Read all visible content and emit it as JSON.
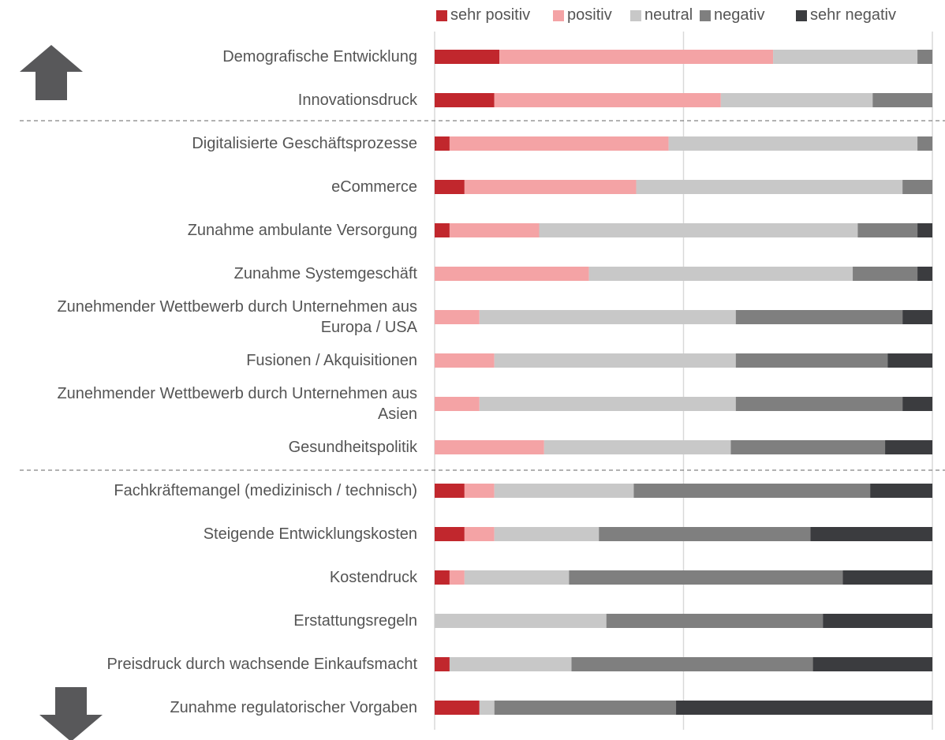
{
  "chart_data": {
    "type": "stacked-bar-horizontal",
    "categories": [
      "Demografische Entwicklung",
      "Innovationsdruck",
      "Digitalisierte Geschäftsprozesse",
      "eCommerce",
      "Zunahme ambulante Versorgung",
      "Zunahme Systemgeschäft",
      "Zunehmender Wettbewerb durch Unternehmen aus\nEuropa / USA",
      "Fusionen / Akquisitionen",
      "Zunehmender Wettbewerb durch Unternehmen aus\nAsien",
      "Gesundheitspolitik",
      "Fachkräftemangel (medizinisch / technisch)",
      "Steigende Entwicklungskosten",
      "Kostendruck",
      "Erstattungsregeln",
      "Preisdruck durch wachsende Einkaufsmacht",
      "Zunahme regulatorischer Vorgaben"
    ],
    "series": [
      {
        "name": "sehr positiv",
        "color": "#c1272d",
        "values": [
          13,
          12,
          3,
          6,
          3,
          0,
          0,
          0,
          0,
          0,
          6,
          6,
          3,
          0,
          3,
          9
        ]
      },
      {
        "name": "positiv",
        "color": "#f4a3a5",
        "values": [
          55,
          45.5,
          44,
          34.5,
          18,
          31,
          9,
          12,
          9,
          22,
          6,
          6,
          3,
          0,
          0,
          0
        ]
      },
      {
        "name": "neutral",
        "color": "#c8c8c8",
        "values": [
          29,
          30.5,
          50,
          53.5,
          64,
          53,
          51.5,
          48.5,
          51.5,
          37.5,
          28,
          21,
          21,
          34.5,
          24.5,
          3
        ]
      },
      {
        "name": "negativ",
        "color": "#7f7f7f",
        "values": [
          3,
          12,
          3,
          6,
          12,
          13,
          33.5,
          30.5,
          33.5,
          31,
          47.5,
          42.5,
          55,
          43.5,
          48.5,
          36.5
        ]
      },
      {
        "name": "sehr negativ",
        "color": "#3b3c3f",
        "values": [
          0,
          0,
          0,
          0,
          3,
          3,
          6,
          9,
          6,
          9.5,
          12.5,
          24.5,
          18,
          22,
          24,
          51.5
        ]
      }
    ],
    "xlim": [
      0,
      100
    ],
    "xticks": [
      0,
      50,
      100
    ],
    "grid": true,
    "legend": "top"
  }
}
